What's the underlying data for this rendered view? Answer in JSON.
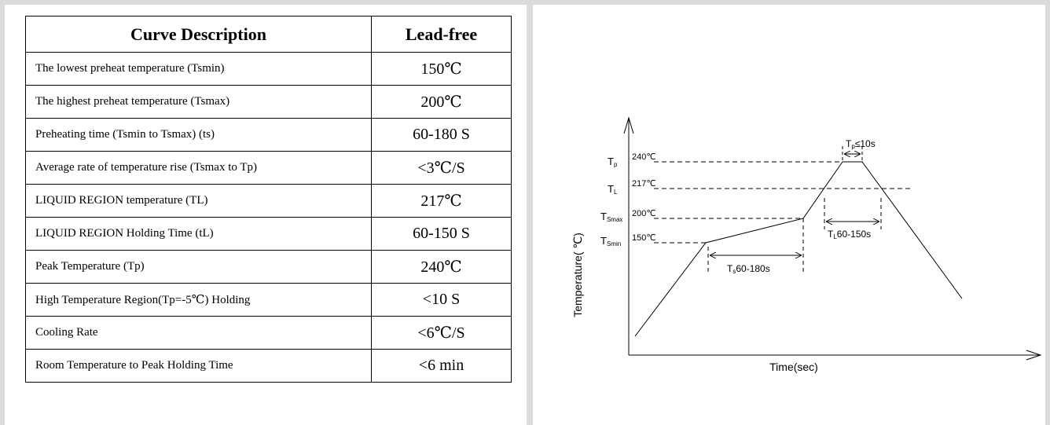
{
  "table": {
    "headers": [
      "Curve Description",
      "Lead-free"
    ],
    "rows": [
      {
        "desc": "The lowest preheat temperature (Tsmin)",
        "value": "150℃"
      },
      {
        "desc": "The highest preheat temperature (Tsmax)",
        "value": "200℃"
      },
      {
        "desc": "Preheating time (Tsmin to Tsmax) (ts)",
        "value": "60-180 S"
      },
      {
        "desc": "Average rate of temperature rise (Tsmax to Tp)",
        "value": "<3℃/S"
      },
      {
        "desc": "LIQUID REGION temperature (TL)",
        "value": "217℃"
      },
      {
        "desc": "LIQUID REGION Holding Time (tL)",
        "value": "60-150 S"
      },
      {
        "desc": "Peak Temperature (Tp)",
        "value": "240℃"
      },
      {
        "desc": "High Temperature Region(Tp=-5℃) Holding",
        "value": "<10 S"
      },
      {
        "desc": "Cooling Rate",
        "value": "<6℃/S"
      },
      {
        "desc": "Room Temperature to Peak Holding Time",
        "value": "<6 min"
      }
    ]
  },
  "diagram": {
    "x_axis_label": "Time(sec)",
    "y_axis_label": "Temperature( ℃)",
    "levels": [
      {
        "sym": "T",
        "sub": "p",
        "temp": "240℃"
      },
      {
        "sym": "T",
        "sub": "L",
        "temp": "217℃"
      },
      {
        "sym": "T",
        "sub": "Smax",
        "temp": "200℃"
      },
      {
        "sym": "T",
        "sub": "Smin",
        "temp": "150℃"
      }
    ],
    "ts_label": {
      "sym": "T",
      "sub": "s",
      "text": "60-180s"
    },
    "tl_label": {
      "sym": "T",
      "sub": "L",
      "text": "60-150s"
    },
    "tp_label": {
      "sym": "T",
      "sub": "p",
      "text": "≤10s"
    }
  }
}
